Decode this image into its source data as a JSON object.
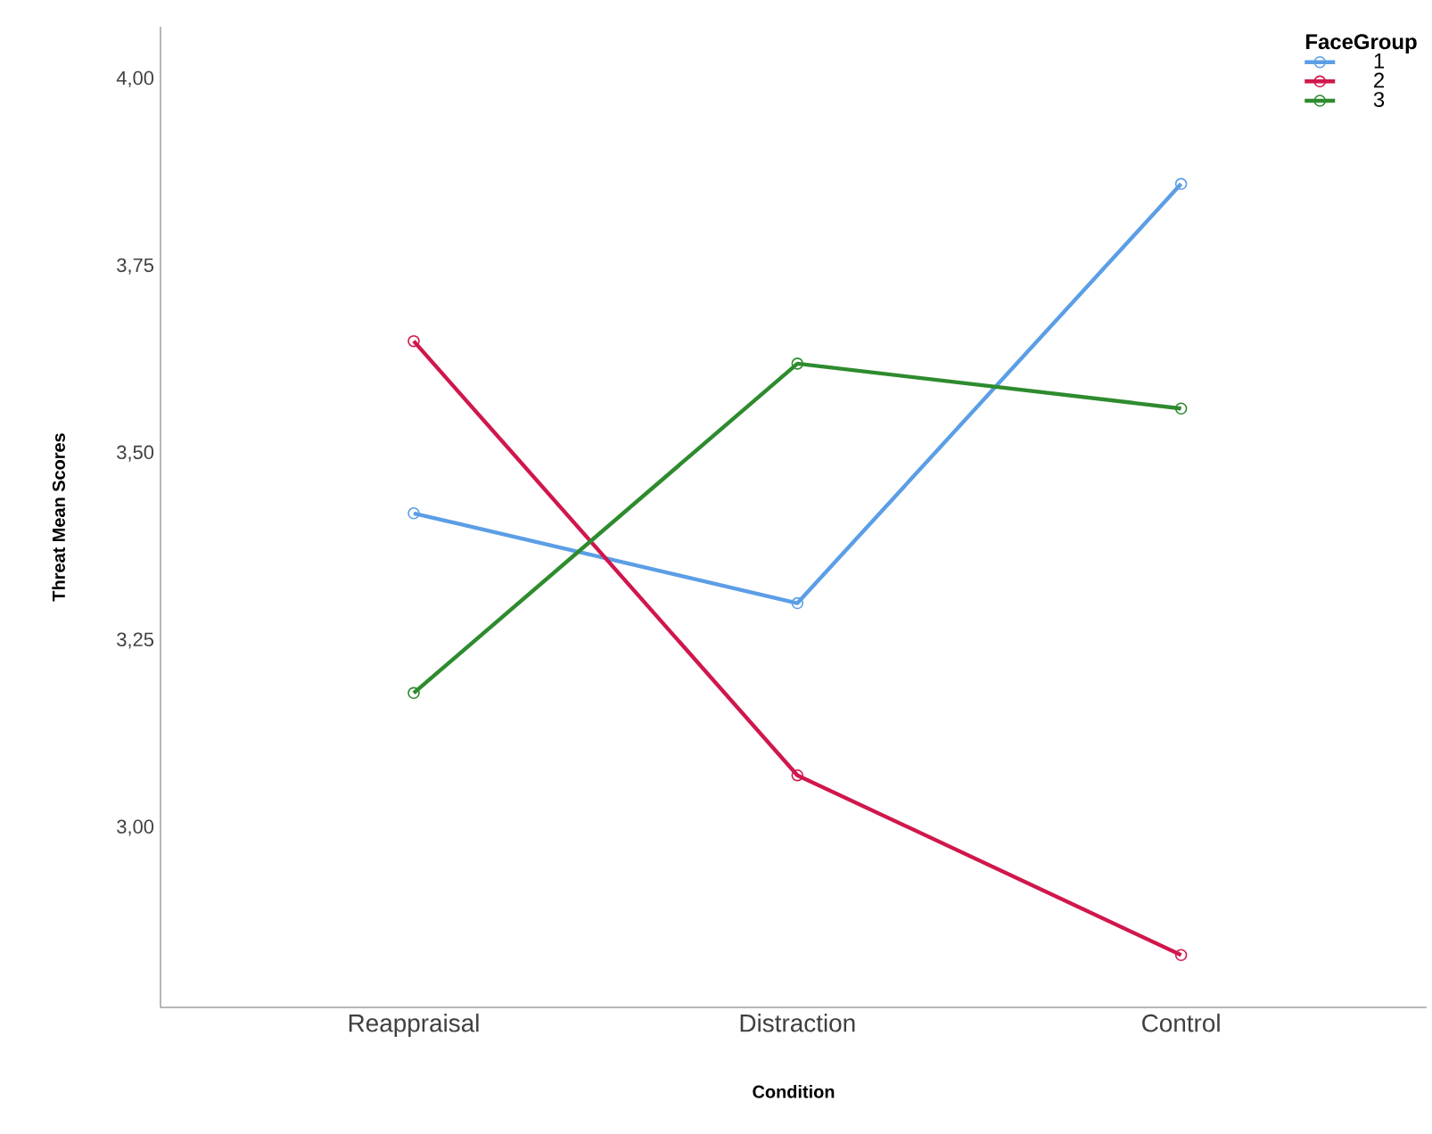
{
  "chart_data": {
    "type": "line",
    "xlabel": "Condition",
    "ylabel": "Threat Mean Scores",
    "legend_title": "FaceGroup",
    "categories": [
      "Reappraisal",
      "Distraction",
      "Control"
    ],
    "series": [
      {
        "name": "1",
        "color": "#5b9ee6",
        "values": [
          3.42,
          3.3,
          3.86
        ]
      },
      {
        "name": "2",
        "color": "#d0174c",
        "values": [
          3.65,
          3.07,
          2.83
        ]
      },
      {
        "name": "3",
        "color": "#2e8b2e",
        "values": [
          3.18,
          3.62,
          3.56
        ]
      }
    ],
    "ylim": [
      2.76,
      4.07
    ],
    "yticks": [
      {
        "value": 3.0,
        "label": "3,00"
      },
      {
        "value": 3.25,
        "label": "3,25"
      },
      {
        "value": 3.5,
        "label": "3,50"
      },
      {
        "value": 3.75,
        "label": "3,75"
      },
      {
        "value": 4.0,
        "label": "4,00"
      }
    ],
    "grid": false,
    "legend": "top right",
    "marker": "circle",
    "line_style": "solid"
  }
}
